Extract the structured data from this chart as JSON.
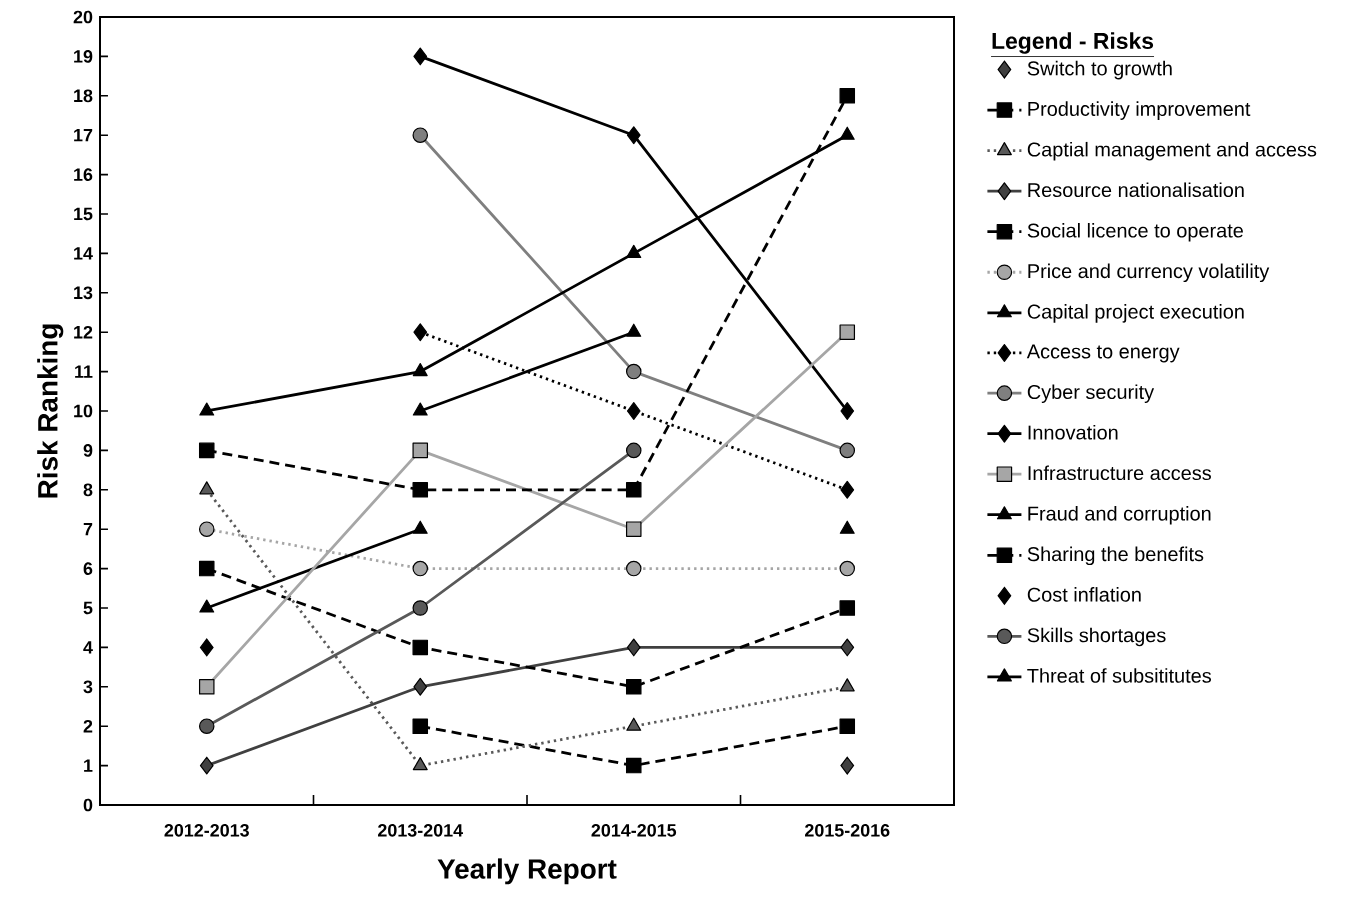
{
  "chart_data": {
    "type": "line",
    "xlabel": "Yearly Report",
    "ylabel": "Risk Ranking",
    "legend_title": "Legend - Risks",
    "legend": "right",
    "grid": false,
    "categories": [
      "2012-2013",
      "2013-2014",
      "2014-2015",
      "2015-2016"
    ],
    "ylim": [
      0,
      20
    ],
    "yticks": [
      0,
      1,
      2,
      3,
      4,
      5,
      6,
      7,
      8,
      9,
      10,
      11,
      12,
      13,
      14,
      15,
      16,
      17,
      18,
      19,
      20
    ],
    "series": [
      {
        "name": "Switch to growth",
        "type": "scatter",
        "color": "#404040",
        "marker": "diamond",
        "values": [
          null,
          null,
          null,
          1
        ]
      },
      {
        "name": "Productivity improvement",
        "color": "#000000",
        "line_style": "dashed",
        "marker": "square",
        "values": [
          null,
          2,
          1,
          2
        ]
      },
      {
        "name": "Captial management and access",
        "color": "#595959",
        "line_style": "dotted",
        "marker": "triangle",
        "values": [
          8,
          1,
          2,
          3
        ]
      },
      {
        "name": "Resource nationalisation",
        "color": "#404040",
        "line_style": "solid",
        "marker": "diamond",
        "values": [
          1,
          3,
          4,
          4
        ]
      },
      {
        "name": "Social licence to operate",
        "color": "#000000",
        "line_style": "dashed",
        "marker": "square",
        "values": [
          6,
          4,
          3,
          5
        ]
      },
      {
        "name": "Price and currency volatility",
        "color": "#a6a6a6",
        "line_style": "dotted",
        "marker": "circle",
        "values": [
          7,
          6,
          6,
          6
        ]
      },
      {
        "name": "Capital project execution",
        "color": "#000000",
        "line_style": "solid",
        "marker": "triangle",
        "values": [
          5,
          7,
          null,
          7
        ]
      },
      {
        "name": "Access to energy",
        "color": "#000000",
        "line_style": "dotted",
        "marker": "diamond",
        "values": [
          null,
          12,
          10,
          8
        ]
      },
      {
        "name": "Cyber security",
        "color": "#7f7f7f",
        "line_style": "solid",
        "marker": "circle",
        "values": [
          null,
          17,
          11,
          9
        ]
      },
      {
        "name": "Innovation",
        "color": "#000000",
        "line_style": "solid",
        "marker": "diamond",
        "values": [
          null,
          19,
          17,
          10
        ]
      },
      {
        "name": "Infrastructure access",
        "color": "#a6a6a6",
        "line_style": "solid",
        "marker": "square",
        "values": [
          3,
          9,
          7,
          12
        ]
      },
      {
        "name": "Fraud and corruption",
        "color": "#000000",
        "line_style": "solid",
        "marker": "triangle",
        "values": [
          10,
          11,
          14,
          17
        ]
      },
      {
        "name": "Sharing the benefits",
        "color": "#000000",
        "line_style": "dashed",
        "marker": "square",
        "values": [
          9,
          8,
          8,
          18
        ]
      },
      {
        "name": "Cost inflation",
        "type": "scatter",
        "color": "#000000",
        "marker": "diamond",
        "values": [
          4,
          null,
          null,
          null
        ]
      },
      {
        "name": "Skills shortages",
        "color": "#595959",
        "line_style": "solid",
        "marker": "circle",
        "values": [
          2,
          5,
          9,
          null
        ]
      },
      {
        "name": "Threat of subsititutes",
        "color": "#000000",
        "line_style": "solid",
        "marker": "triangle",
        "values": [
          null,
          10,
          12,
          null
        ]
      }
    ]
  }
}
